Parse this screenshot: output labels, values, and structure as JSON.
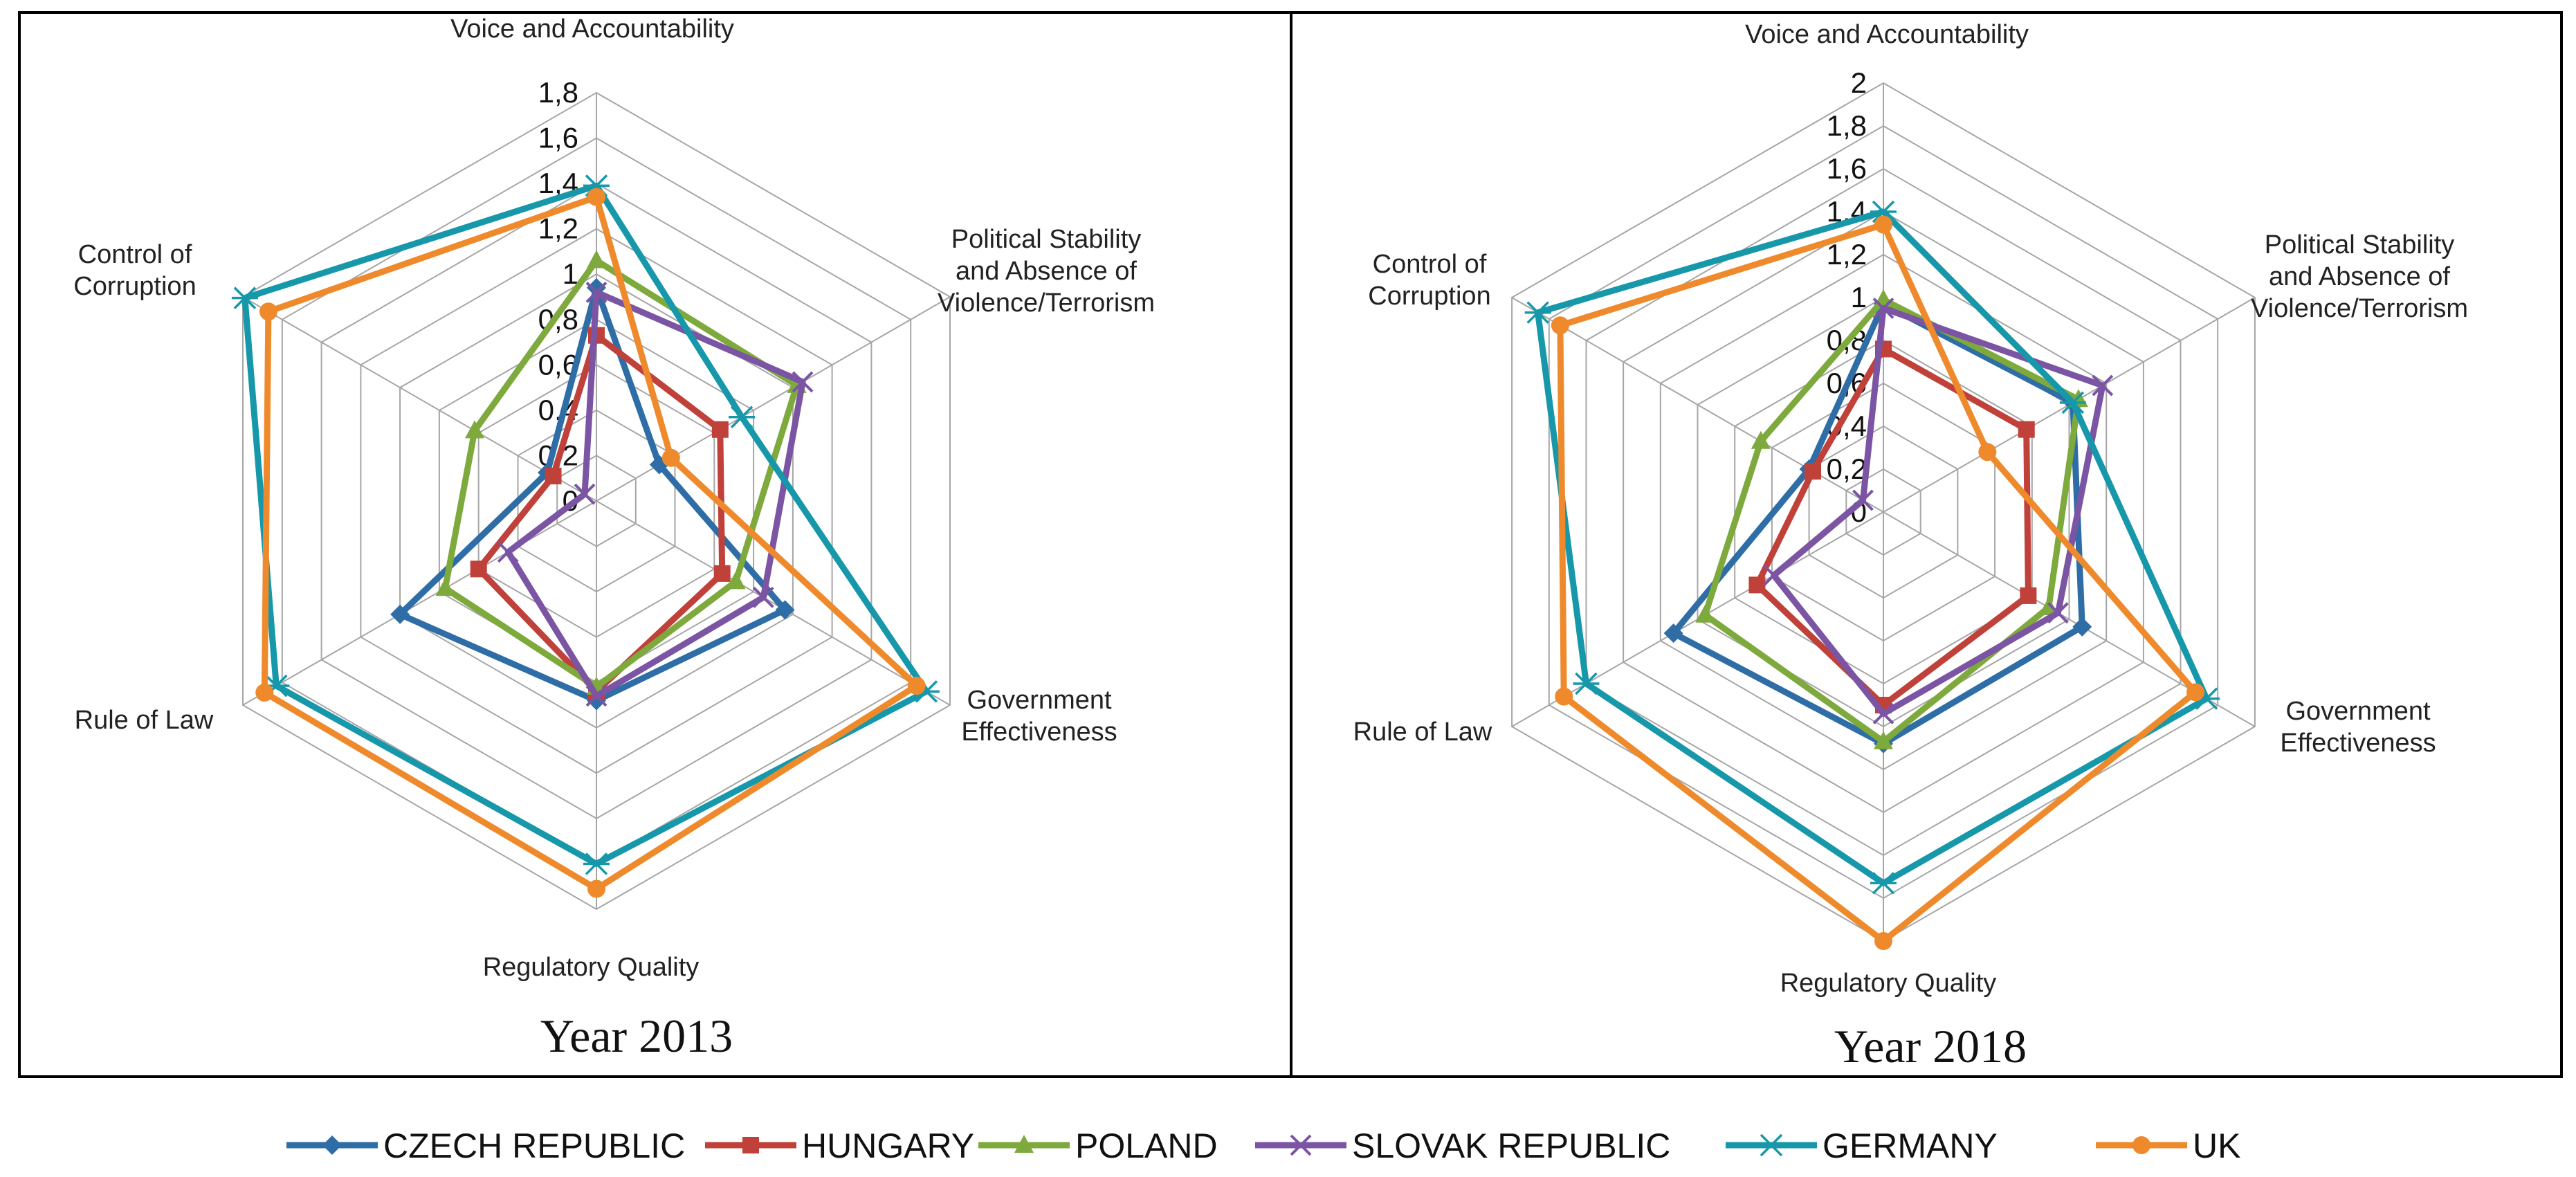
{
  "chart_data": [
    {
      "type": "radar",
      "title": "Year 2013",
      "axes": [
        "Voice and Accountability",
        "Political Stability\nand Absence of\nViolence/Terrorism",
        "Government\nEffectiveness",
        "Regulatory Quality",
        "Rule of Law",
        "Control of\nCorruption"
      ],
      "ticks": [
        "0",
        "0,2",
        "0,4",
        "0,6",
        "0,8",
        "1",
        "1,2",
        "1,4",
        "1,6",
        "1,8"
      ],
      "range": [
        0,
        1.8
      ],
      "grid": true,
      "series": [
        {
          "name": "CZECH REPUBLIC",
          "values": [
            0.94,
            0.32,
            0.96,
            0.88,
            1.0,
            0.25
          ]
        },
        {
          "name": "HUNGARY",
          "values": [
            0.73,
            0.63,
            0.64,
            0.84,
            0.6,
            0.22
          ]
        },
        {
          "name": "POLAND",
          "values": [
            1.06,
            1.02,
            0.71,
            0.82,
            0.77,
            0.62
          ]
        },
        {
          "name": "SLOVAK REPUBLIC",
          "values": [
            0.92,
            1.05,
            0.85,
            0.86,
            0.45,
            0.06
          ]
        },
        {
          "name": "GERMANY",
          "values": [
            1.39,
            0.74,
            1.68,
            1.6,
            1.63,
            1.79
          ]
        },
        {
          "name": "UK",
          "values": [
            1.34,
            0.38,
            1.63,
            1.71,
            1.69,
            1.67
          ]
        }
      ]
    },
    {
      "type": "radar",
      "title": "Year 2018",
      "axes": [
        "Voice and Accountability",
        "Political Stability\nand Absence of\nViolence/Terrorism",
        "Government\nEffectiveness",
        "Regulatory Quality",
        "Rule of Law",
        "Control of\nCorruption"
      ],
      "ticks": [
        "0",
        "0,2",
        "0,4",
        "0,6",
        "0,8",
        "1",
        "1,2",
        "1,4",
        "1,6",
        "1,8",
        "2"
      ],
      "range": [
        0,
        2
      ],
      "grid": true,
      "series": [
        {
          "name": "CZECH REPUBLIC",
          "values": [
            0.97,
            1.02,
            1.07,
            1.08,
            1.13,
            0.4
          ]
        },
        {
          "name": "HUNGARY",
          "values": [
            0.76,
            0.77,
            0.78,
            0.9,
            0.68,
            0.38
          ]
        },
        {
          "name": "POLAND",
          "values": [
            0.99,
            1.05,
            0.89,
            1.07,
            0.96,
            0.66
          ]
        },
        {
          "name": "SLOVAK REPUBLIC",
          "values": [
            0.95,
            1.18,
            0.94,
            0.94,
            0.59,
            0.11
          ]
        },
        {
          "name": "GERMANY",
          "values": [
            1.4,
            1.02,
            1.74,
            1.73,
            1.6,
            1.86
          ]
        },
        {
          "name": "UK",
          "values": [
            1.34,
            0.56,
            1.68,
            2.0,
            1.72,
            1.74
          ]
        }
      ]
    }
  ],
  "legend": [
    {
      "name": "CZECH REPUBLIC",
      "color": "#2e6da6",
      "marker": "diamond"
    },
    {
      "name": "HUNGARY",
      "color": "#c0403a",
      "marker": "square"
    },
    {
      "name": "POLAND",
      "color": "#7ea93c",
      "marker": "triangle"
    },
    {
      "name": "SLOVAK REPUBLIC",
      "color": "#7b54a3",
      "marker": "x"
    },
    {
      "name": "GERMANY",
      "color": "#1698aa",
      "marker": "asterisk"
    },
    {
      "name": "UK",
      "color": "#ef8a2c",
      "marker": "circle"
    }
  ]
}
